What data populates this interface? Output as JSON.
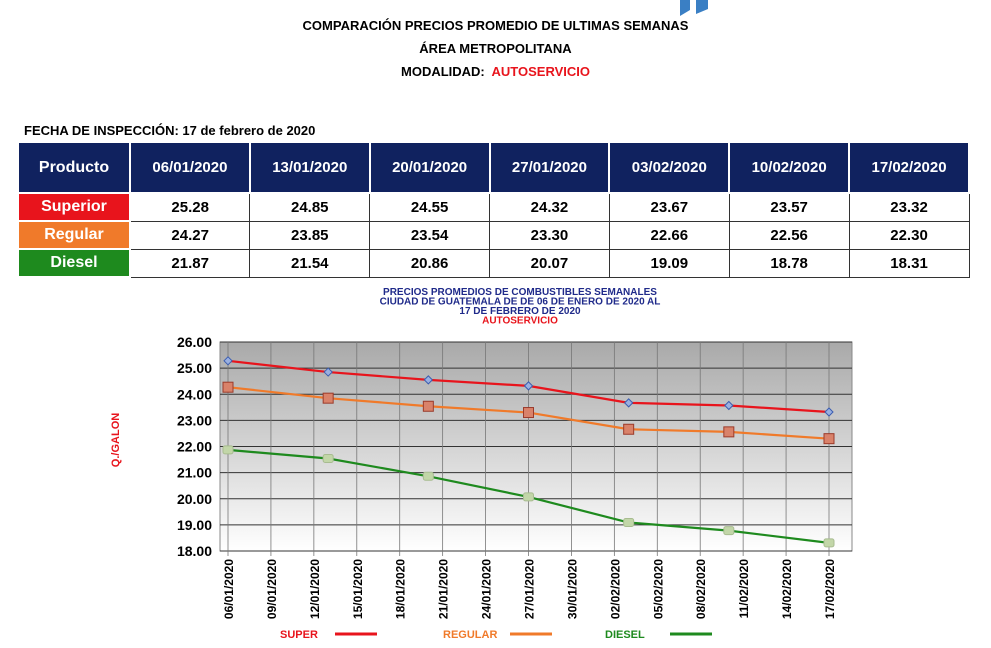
{
  "header": {
    "title": "COMPARACIÓN PRECIOS PROMEDIO DE ULTIMAS SEMANAS",
    "subtitle": "ÁREA METROPOLITANA",
    "modalidad_label": "MODALIDAD:",
    "modalidad_value": "AUTOSERVICIO",
    "fecha": "FECHA DE INSPECCIÓN: 17 de febrero de 2020"
  },
  "table": {
    "headers": [
      "Producto",
      "06/01/2020",
      "13/01/2020",
      "20/01/2020",
      "27/01/2020",
      "03/02/2020",
      "10/02/2020",
      "17/02/2020"
    ],
    "rows": [
      {
        "product": "Superior",
        "color": "#e8141c",
        "values": [
          "25.28",
          "24.85",
          "24.55",
          "24.32",
          "23.67",
          "23.57",
          "23.32"
        ]
      },
      {
        "product": "Regular",
        "color": "#f07a2a",
        "values": [
          "24.27",
          "23.85",
          "23.54",
          "23.30",
          "22.66",
          "22.56",
          "22.30"
        ]
      },
      {
        "product": "Diesel",
        "color": "#1e8a1e",
        "values": [
          "21.87",
          "21.54",
          "20.86",
          "20.07",
          "19.09",
          "18.78",
          "18.31"
        ]
      }
    ]
  },
  "chart_data": {
    "type": "line",
    "title_lines": [
      "PRECIOS PROMEDIOS DE COMBUSTIBLES SEMANALES",
      "CIUDAD DE GUATEMALA DE  DE 06 DE ENERO DE 2020 AL",
      "17 DE FEBRERO DE 2020"
    ],
    "title_mode": "AUTOSERVICIO",
    "ylabel": "Q./GALON",
    "ylim": [
      18,
      26
    ],
    "yticks": [
      "18.00",
      "19.00",
      "20.00",
      "21.00",
      "22.00",
      "23.00",
      "24.00",
      "25.00",
      "26.00"
    ],
    "xticks": [
      "06/01/2020",
      "09/01/2020",
      "12/01/2020",
      "15/01/2020",
      "18/01/2020",
      "21/01/2020",
      "24/01/2020",
      "27/01/2020",
      "30/01/2020",
      "02/02/2020",
      "05/02/2020",
      "08/02/2020",
      "11/02/2020",
      "14/02/2020",
      "17/02/2020"
    ],
    "x": [
      "06/01/2020",
      "13/01/2020",
      "20/01/2020",
      "27/01/2020",
      "03/02/2020",
      "10/02/2020",
      "17/02/2020"
    ],
    "series": [
      {
        "name": "SUPER",
        "color": "#e8141c",
        "values": [
          25.28,
          24.85,
          24.55,
          24.32,
          23.67,
          23.57,
          23.32
        ]
      },
      {
        "name": "REGULAR",
        "color": "#f07a2a",
        "values": [
          24.27,
          23.85,
          23.54,
          23.3,
          22.66,
          22.56,
          22.3
        ]
      },
      {
        "name": "DIESEL",
        "color": "#1e8a1e",
        "values": [
          21.87,
          21.54,
          20.86,
          20.07,
          19.09,
          18.78,
          18.31
        ]
      }
    ],
    "grid": true,
    "legend": "bottom"
  }
}
